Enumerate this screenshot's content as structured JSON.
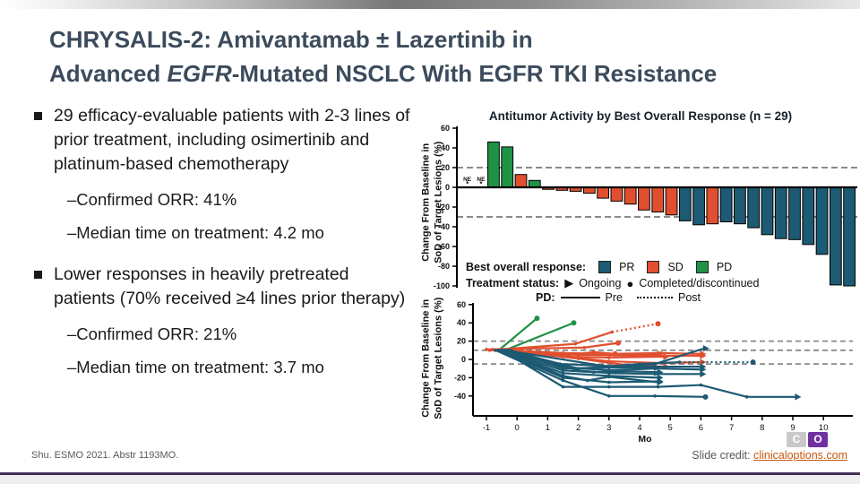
{
  "title": {
    "line1": "CHRYSALIS-2: Amivantamab ± Lazertinib in",
    "line2_pre": "Advanced ",
    "line2_italic": "EGFR",
    "line2_post": "-Mutated NSCLC With EGFR TKI Resistance"
  },
  "bullets": [
    {
      "text": "29 efficacy-evaluable patients with 2-3 lines of prior treatment, including osimertinib and platinum-based chemotherapy",
      "subs": [
        "–Confirmed ORR: 41%",
        "–Median time on treatment: 4.2 mo"
      ]
    },
    {
      "text": "Lower responses in heavily pretreated patients (70% received ≥4 lines prior therapy)",
      "subs": [
        "–Confirmed ORR: 21%",
        "–Median time on treatment: 3.7 mo"
      ]
    }
  ],
  "colors": {
    "pr": "#1d5a73",
    "sd": "#e04f2f",
    "pd": "#1f9246",
    "dash": "#8a8a8a"
  },
  "legend": {
    "response_label": "Best overall response:",
    "items": [
      {
        "key": "pr",
        "label": "PR"
      },
      {
        "key": "sd",
        "label": "SD"
      },
      {
        "key": "pd",
        "label": "PD"
      }
    ],
    "status_label": "Treatment status:",
    "ongoing_marker": "▶",
    "ongoing_label": "Ongoing",
    "completed_marker": "●",
    "completed_label": "Completed/discontinued",
    "pd_label": "PD:",
    "pre_label": "Pre",
    "post_label": "Post"
  },
  "chart_data": [
    {
      "type": "bar",
      "title": "Antitumor Activity by Best Overall Response (n = 29)",
      "ylabel_line1": "Change From Baseline in",
      "ylabel_line2": "SoD of Target Lesions (%)",
      "ylim": [
        -100,
        60
      ],
      "yticks": [
        60,
        40,
        20,
        0,
        -20,
        -40,
        -60,
        -80,
        -100
      ],
      "ref_lines": [
        20,
        -30
      ],
      "ne_label": "NE",
      "ne_marker": "*",
      "bars": [
        {
          "v": null,
          "g": "NE"
        },
        {
          "v": null,
          "g": "NE"
        },
        {
          "v": 46,
          "g": "PD"
        },
        {
          "v": 41,
          "g": "PD"
        },
        {
          "v": 13,
          "g": "SD"
        },
        {
          "v": 7,
          "g": "PD"
        },
        {
          "v": -2,
          "g": "SD"
        },
        {
          "v": -3,
          "g": "SD"
        },
        {
          "v": -4,
          "g": "SD"
        },
        {
          "v": -6,
          "g": "SD"
        },
        {
          "v": -11,
          "g": "SD"
        },
        {
          "v": -14,
          "g": "SD"
        },
        {
          "v": -17,
          "g": "SD"
        },
        {
          "v": -23,
          "g": "SD"
        },
        {
          "v": -25,
          "g": "SD"
        },
        {
          "v": -28,
          "g": "SD"
        },
        {
          "v": -34,
          "g": "PR"
        },
        {
          "v": -38,
          "g": "PR"
        },
        {
          "v": -37,
          "g": "SD"
        },
        {
          "v": -35,
          "g": "PR"
        },
        {
          "v": -37,
          "g": "PR"
        },
        {
          "v": -41,
          "g": "PR"
        },
        {
          "v": -48,
          "g": "PR"
        },
        {
          "v": -52,
          "g": "PR"
        },
        {
          "v": -53,
          "g": "PR"
        },
        {
          "v": -58,
          "g": "PR"
        },
        {
          "v": -68,
          "g": "PR"
        },
        {
          "v": -99,
          "g": "PR"
        },
        {
          "v": -100,
          "g": "PR"
        }
      ]
    },
    {
      "type": "line",
      "xlabel": "Mo",
      "ylabel_line1": "Change From Baseline in",
      "ylabel_line2": "SoD of Target Lesions (%)",
      "xticks": [
        -1,
        0,
        1,
        2,
        3,
        4,
        5,
        6,
        7,
        8,
        9,
        10
      ],
      "yticks": [
        60,
        40,
        20,
        0,
        -20,
        -40
      ],
      "ref_lines": [
        20,
        10,
        -5
      ],
      "series": [
        {
          "g": "PD",
          "end": "dot",
          "pts": [
            [
              -0.6,
              10
            ],
            [
              0.65,
              45
            ]
          ]
        },
        {
          "g": "PD",
          "end": "dot",
          "pts": [
            [
              -0.4,
              10
            ],
            [
              1.85,
              40
            ]
          ]
        },
        {
          "g": "SD",
          "end": "dot",
          "dotted_from": 2,
          "pts": [
            [
              -0.5,
              11
            ],
            [
              1.9,
              17
            ],
            [
              3.1,
              30
            ],
            [
              4.6,
              39
            ]
          ]
        },
        {
          "g": "SD",
          "end": "dot",
          "pts": [
            [
              -0.8,
              11
            ],
            [
              2.2,
              13
            ],
            [
              3.3,
              18
            ]
          ]
        },
        {
          "g": "SD",
          "end": "arrow",
          "pts": [
            [
              -1,
              11
            ],
            [
              1.5,
              7
            ],
            [
              3,
              6
            ],
            [
              4.7,
              7
            ],
            [
              6,
              6
            ]
          ]
        },
        {
          "g": "SD",
          "end": "arrow",
          "pts": [
            [
              -0.9,
              10
            ],
            [
              2,
              5
            ],
            [
              4.5,
              4
            ],
            [
              6,
              4
            ]
          ]
        },
        {
          "g": "SD",
          "end": "arrow",
          "pts": [
            [
              -0.6,
              10
            ],
            [
              1.5,
              3
            ],
            [
              3,
              2
            ],
            [
              4.8,
              3
            ]
          ]
        },
        {
          "g": "SD",
          "end": "arrow",
          "pts": [
            [
              -0.3,
              10
            ],
            [
              3,
              -2
            ],
            [
              4.7,
              -4
            ],
            [
              6,
              -3
            ]
          ]
        },
        {
          "g": "SD",
          "end": "arrow",
          "pts": [
            [
              -0.5,
              10
            ],
            [
              2,
              1
            ],
            [
              3.5,
              -6
            ],
            [
              4.8,
              -8
            ]
          ]
        },
        {
          "g": "SD",
          "end": "dot",
          "pts": [
            [
              -0.7,
              10
            ],
            [
              1.5,
              4
            ],
            [
              2.5,
              8
            ],
            [
              3.2,
              6
            ]
          ]
        },
        {
          "g": "SD",
          "end": "arrow",
          "pts": [
            [
              -0.4,
              10
            ],
            [
              2,
              6
            ],
            [
              4,
              5
            ],
            [
              4.6,
              6
            ]
          ]
        },
        {
          "g": "PR",
          "end": "dot",
          "pts": [
            [
              -0.7,
              10
            ],
            [
              1.5,
              -23
            ],
            [
              3,
              -40
            ],
            [
              4.5,
              -40
            ],
            [
              6.15,
              -41
            ]
          ]
        },
        {
          "g": "PR",
          "end": "arrow",
          "pts": [
            [
              -0.5,
              10
            ],
            [
              1.5,
              -30
            ],
            [
              3,
              -30
            ],
            [
              4.6,
              -30
            ],
            [
              6,
              -28
            ],
            [
              7.5,
              -41
            ],
            [
              9.1,
              -41
            ]
          ]
        },
        {
          "g": "PR",
          "end": "arrow",
          "pts": [
            [
              -0.4,
              10
            ],
            [
              3,
              -8
            ],
            [
              4.5,
              -5
            ],
            [
              6.1,
              12
            ]
          ]
        },
        {
          "g": "PR",
          "end": "dot",
          "dotted_from": 3,
          "pts": [
            [
              -0.3,
              10
            ],
            [
              2,
              -10
            ],
            [
              4,
              -5
            ],
            [
              5.3,
              -3
            ],
            [
              7.7,
              -3
            ]
          ]
        },
        {
          "g": "PR",
          "end": "arrow",
          "pts": [
            [
              -0.6,
              10
            ],
            [
              1.5,
              -15
            ],
            [
              3,
              -18
            ],
            [
              4.6,
              -20
            ]
          ]
        },
        {
          "g": "PR",
          "end": "arrow",
          "pts": [
            [
              -0.5,
              10
            ],
            [
              1.5,
              -12
            ],
            [
              2.5,
              -14
            ],
            [
              3.5,
              -13
            ],
            [
              4.6,
              -14
            ]
          ]
        },
        {
          "g": "PR",
          "end": "arrow",
          "pts": [
            [
              -0.4,
              10
            ],
            [
              1.4,
              -8
            ],
            [
              3,
              -12
            ],
            [
              4.5,
              -10
            ],
            [
              6,
              -11
            ]
          ]
        },
        {
          "g": "PR",
          "end": "arrow",
          "pts": [
            [
              -0.3,
              10
            ],
            [
              1.4,
              -5
            ],
            [
              2.8,
              -7
            ],
            [
              4.5,
              -8
            ],
            [
              6,
              -8
            ]
          ]
        },
        {
          "g": "PR",
          "end": "arrow",
          "pts": [
            [
              -0.5,
              10
            ],
            [
              1.5,
              -18
            ],
            [
              2.3,
              -23
            ],
            [
              3,
              -19
            ],
            [
              4.6,
              -25
            ]
          ]
        },
        {
          "g": "PR",
          "end": "arrow",
          "pts": [
            [
              -0.4,
              10
            ],
            [
              2,
              -12
            ],
            [
              3,
              -15
            ],
            [
              4.5,
              -16
            ],
            [
              6,
              -16
            ]
          ]
        },
        {
          "g": "PR",
          "end": "arrow",
          "pts": [
            [
              -0.2,
              10
            ],
            [
              1.5,
              -10
            ],
            [
              3,
              -9
            ],
            [
              4.5,
              -9
            ]
          ]
        },
        {
          "g": "PR",
          "end": "arrow",
          "pts": [
            [
              -0.6,
              10
            ],
            [
              1.5,
              -20
            ],
            [
              3,
              -25
            ],
            [
              4.6,
              -24
            ]
          ]
        }
      ]
    }
  ],
  "footer": {
    "citation": "Shu. ESMO 2021. Abstr 1193MO.",
    "credit_label": "Slide credit: ",
    "credit_link": "clinicaloptions.com",
    "logo_c": "C",
    "logo_o": "O"
  }
}
